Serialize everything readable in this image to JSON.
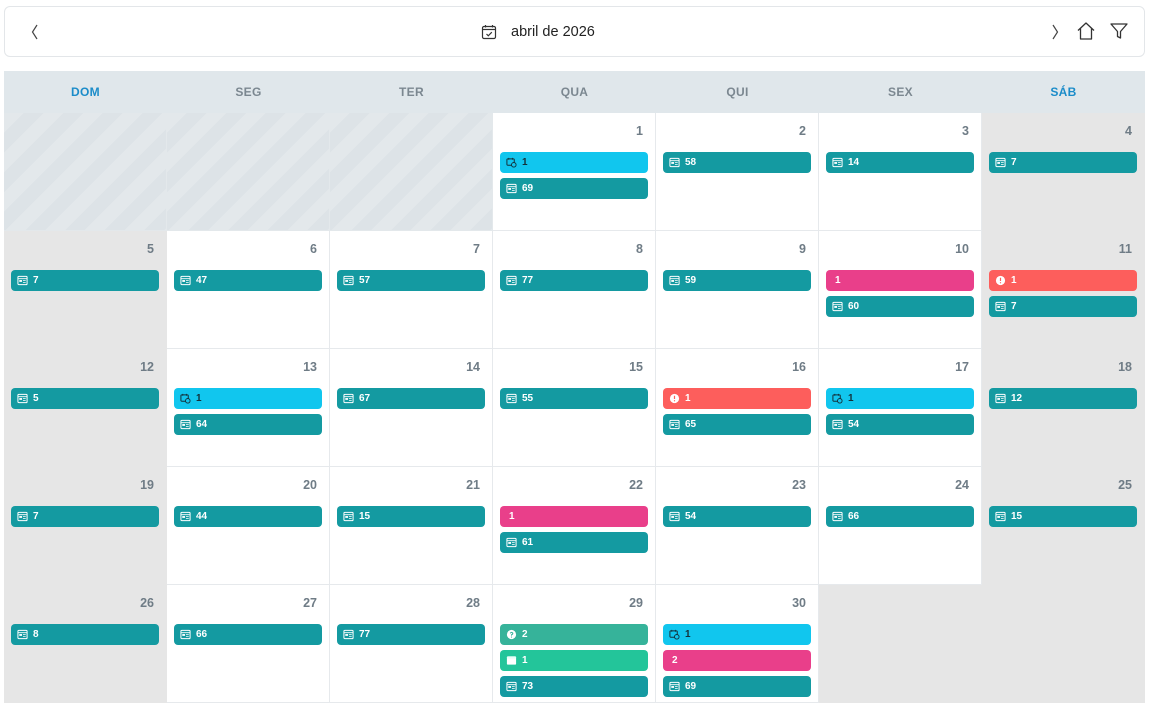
{
  "header": {
    "title": "abril de 2026"
  },
  "weekdays": [
    "DOM",
    "SEG",
    "TER",
    "QUA",
    "QUI",
    "SEX",
    "SÁB"
  ],
  "colors": {
    "teal": "#149aa1",
    "cyan": "#11c6ee",
    "pink": "#e93f8a",
    "coral": "#fd5e5c",
    "green": "#36b39a",
    "mint": "#23c59a",
    "weekend_header": "#1b8cc9"
  },
  "weeks": [
    [
      {
        "pad": true
      },
      {
        "pad": true
      },
      {
        "pad": true
      },
      {
        "day": "1",
        "events": [
          {
            "kind": "cyan",
            "icon": "calendar-check-icon",
            "label": "1"
          },
          {
            "kind": "teal",
            "icon": "document-icon",
            "label": "69"
          }
        ]
      },
      {
        "day": "2",
        "events": [
          {
            "kind": "teal",
            "icon": "document-icon",
            "label": "58"
          }
        ]
      },
      {
        "day": "3",
        "events": [
          {
            "kind": "teal",
            "icon": "document-icon",
            "label": "14"
          }
        ]
      },
      {
        "day": "4",
        "weekend": true,
        "events": [
          {
            "kind": "teal",
            "icon": "document-icon",
            "label": "7"
          }
        ]
      }
    ],
    [
      {
        "day": "5",
        "weekend": true,
        "events": [
          {
            "kind": "teal",
            "icon": "document-icon",
            "label": "7"
          }
        ]
      },
      {
        "day": "6",
        "events": [
          {
            "kind": "teal",
            "icon": "document-icon",
            "label": "47"
          }
        ]
      },
      {
        "day": "7",
        "events": [
          {
            "kind": "teal",
            "icon": "document-icon",
            "label": "57"
          }
        ]
      },
      {
        "day": "8",
        "events": [
          {
            "kind": "teal",
            "icon": "document-icon",
            "label": "77"
          }
        ]
      },
      {
        "day": "9",
        "events": [
          {
            "kind": "teal",
            "icon": "document-icon",
            "label": "59"
          }
        ]
      },
      {
        "day": "10",
        "events": [
          {
            "kind": "pink",
            "icon": "",
            "label": "1"
          },
          {
            "kind": "teal",
            "icon": "document-icon",
            "label": "60"
          }
        ]
      },
      {
        "day": "11",
        "weekend": true,
        "events": [
          {
            "kind": "coral",
            "icon": "alert-circle-icon",
            "label": "1"
          },
          {
            "kind": "teal",
            "icon": "document-icon",
            "label": "7"
          }
        ]
      }
    ],
    [
      {
        "day": "12",
        "weekend": true,
        "events": [
          {
            "kind": "teal",
            "icon": "document-icon",
            "label": "5"
          }
        ]
      },
      {
        "day": "13",
        "events": [
          {
            "kind": "cyan",
            "icon": "calendar-check-icon",
            "label": "1"
          },
          {
            "kind": "teal",
            "icon": "document-icon",
            "label": "64"
          }
        ]
      },
      {
        "day": "14",
        "events": [
          {
            "kind": "teal",
            "icon": "document-icon",
            "label": "67"
          }
        ]
      },
      {
        "day": "15",
        "events": [
          {
            "kind": "teal",
            "icon": "document-icon",
            "label": "55"
          }
        ]
      },
      {
        "day": "16",
        "events": [
          {
            "kind": "coral",
            "icon": "alert-circle-icon",
            "label": "1"
          },
          {
            "kind": "teal",
            "icon": "document-icon",
            "label": "65"
          }
        ]
      },
      {
        "day": "17",
        "events": [
          {
            "kind": "cyan",
            "icon": "calendar-check-icon",
            "label": "1"
          },
          {
            "kind": "teal",
            "icon": "document-icon",
            "label": "54"
          }
        ]
      },
      {
        "day": "18",
        "weekend": true,
        "events": [
          {
            "kind": "teal",
            "icon": "document-icon",
            "label": "12"
          }
        ]
      }
    ],
    [
      {
        "day": "19",
        "weekend": true,
        "events": [
          {
            "kind": "teal",
            "icon": "document-icon",
            "label": "7"
          }
        ]
      },
      {
        "day": "20",
        "events": [
          {
            "kind": "teal",
            "icon": "document-icon",
            "label": "44"
          }
        ]
      },
      {
        "day": "21",
        "events": [
          {
            "kind": "teal",
            "icon": "document-icon",
            "label": "15"
          }
        ]
      },
      {
        "day": "22",
        "events": [
          {
            "kind": "pink",
            "icon": "",
            "label": "1"
          },
          {
            "kind": "teal",
            "icon": "document-icon",
            "label": "61"
          }
        ]
      },
      {
        "day": "23",
        "events": [
          {
            "kind": "teal",
            "icon": "document-icon",
            "label": "54"
          }
        ]
      },
      {
        "day": "24",
        "events": [
          {
            "kind": "teal",
            "icon": "document-icon",
            "label": "66"
          }
        ]
      },
      {
        "day": "25",
        "weekend": true,
        "events": [
          {
            "kind": "teal",
            "icon": "document-icon",
            "label": "15"
          }
        ]
      }
    ],
    [
      {
        "day": "26",
        "weekend": true,
        "events": [
          {
            "kind": "teal",
            "icon": "document-icon",
            "label": "8"
          }
        ]
      },
      {
        "day": "27",
        "events": [
          {
            "kind": "teal",
            "icon": "document-icon",
            "label": "66"
          }
        ]
      },
      {
        "day": "28",
        "events": [
          {
            "kind": "teal",
            "icon": "document-icon",
            "label": "77"
          }
        ]
      },
      {
        "day": "29",
        "events": [
          {
            "kind": "green",
            "icon": "help-circle-icon",
            "label": "2"
          },
          {
            "kind": "mint",
            "icon": "calendar-icon",
            "label": "1"
          },
          {
            "kind": "teal",
            "icon": "document-icon",
            "label": "73"
          }
        ]
      },
      {
        "day": "30",
        "events": [
          {
            "kind": "cyan",
            "icon": "calendar-check-icon",
            "label": "1"
          },
          {
            "kind": "pink",
            "icon": "",
            "label": "2"
          },
          {
            "kind": "teal",
            "icon": "document-icon",
            "label": "69"
          }
        ]
      },
      {
        "empty": true
      },
      {
        "empty": true,
        "weekend": true
      }
    ]
  ]
}
